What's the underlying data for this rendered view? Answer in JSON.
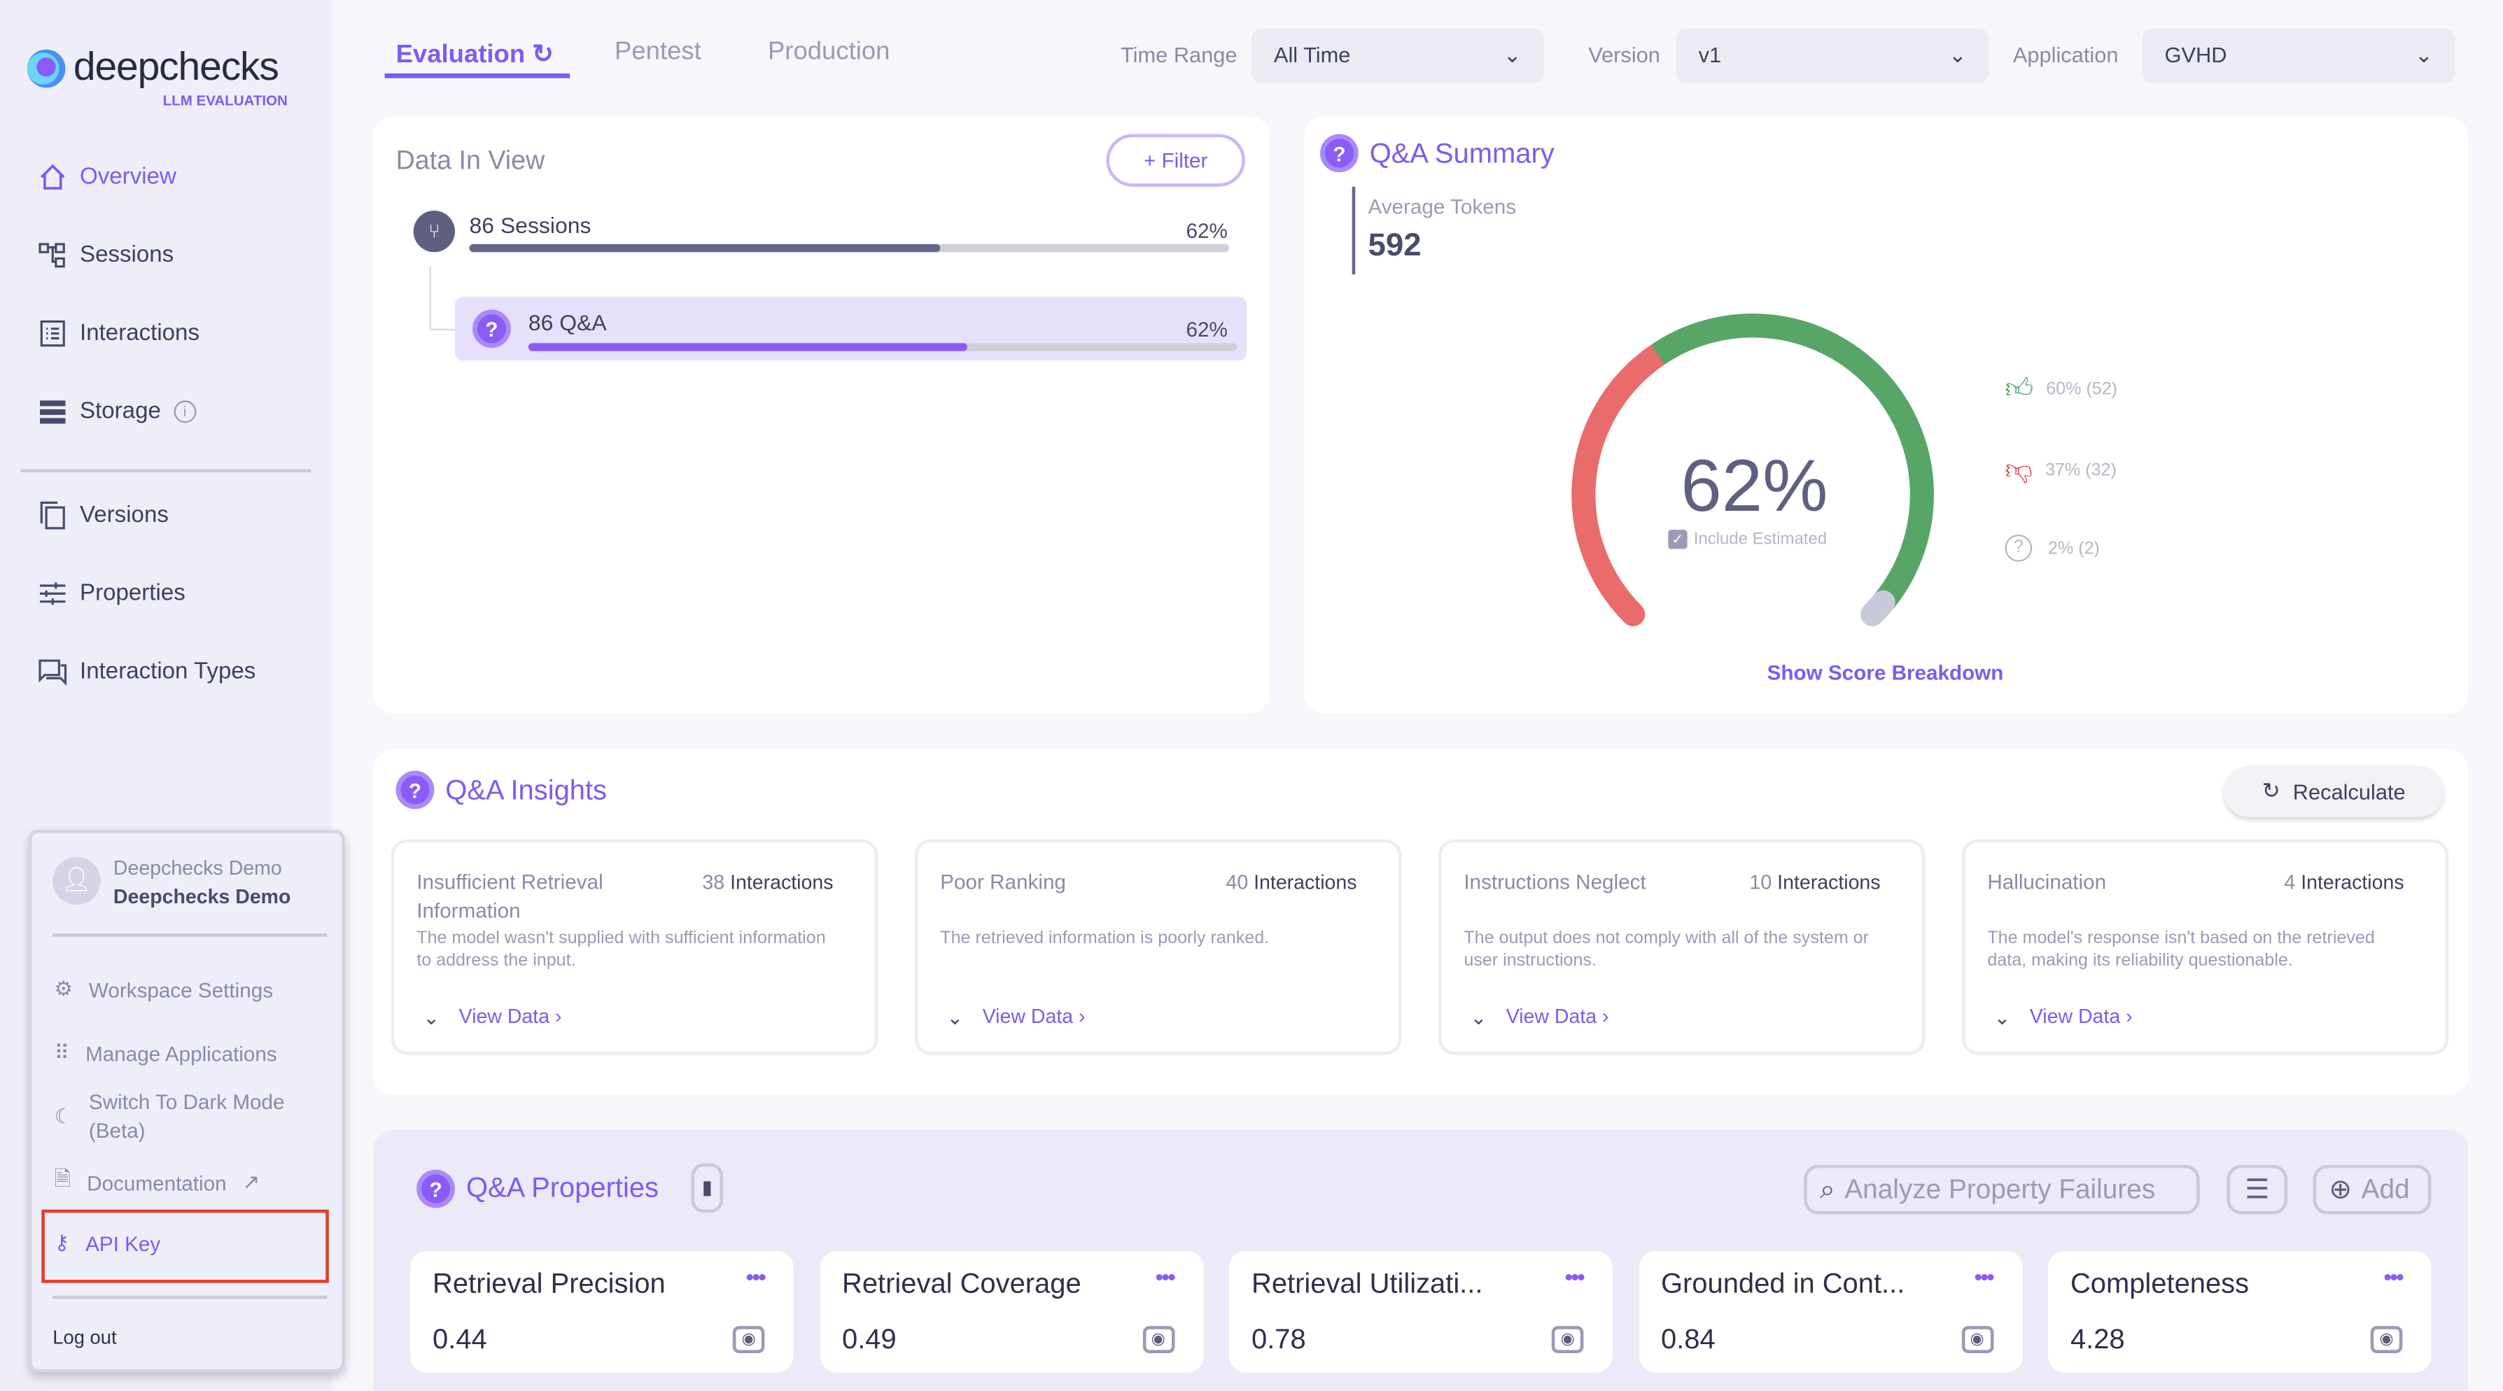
{
  "brand": {
    "name": "deepchecks",
    "subtitle": "LLM EVALUATION"
  },
  "sidebar": {
    "items": [
      {
        "label": "Overview"
      },
      {
        "label": "Sessions"
      },
      {
        "label": "Interactions"
      },
      {
        "label": "Storage"
      },
      {
        "label": "Versions"
      },
      {
        "label": "Properties"
      },
      {
        "label": "Interaction Types"
      }
    ]
  },
  "tabs": [
    {
      "label": "Evaluation"
    },
    {
      "label": "Pentest"
    },
    {
      "label": "Production"
    }
  ],
  "filters": {
    "time_range_label": "Time Range",
    "time_range": "All Time",
    "version_label": "Version",
    "version": "v1",
    "application_label": "Application",
    "application": "GVHD"
  },
  "data_in_view": {
    "title": "Data In View",
    "filter_button": "+ Filter",
    "sessions": {
      "label": "86 Sessions",
      "percent": "62%",
      "fraction": 0.62
    },
    "qa": {
      "label": "86 Q&A",
      "percent": "62%",
      "fraction": 0.62
    }
  },
  "summary": {
    "title": "Q&A Summary",
    "avg_tokens_label": "Average Tokens",
    "avg_tokens": "592",
    "score": "62%",
    "include_estimated": "Include Estimated",
    "good": "60% (52)",
    "bad": "37% (32)",
    "unknown": "2% (2)",
    "good_fraction": 0.6,
    "bad_fraction": 0.37,
    "unknown_fraction": 0.02,
    "breakdown_link": "Show Score Breakdown",
    "colors": {
      "good": "#58a667",
      "bad": "#e96b6b",
      "unknown": "#c9c9dc"
    }
  },
  "insights": {
    "title": "Q&A Insights",
    "recalculate": "Recalculate",
    "cards": [
      {
        "title": "Insufficient Retrieval Information",
        "count": "38",
        "count_label": "Interactions",
        "desc": "The model wasn't supplied with sufficient information to address the input.",
        "link": "View Data ›"
      },
      {
        "title": "Poor Ranking",
        "count": "40",
        "count_label": "Interactions",
        "desc": "The retrieved information is poorly ranked.",
        "link": "View Data ›"
      },
      {
        "title": "Instructions Neglect",
        "count": "10",
        "count_label": "Interactions",
        "desc": "The output does not comply with all of the system or user instructions.",
        "link": "View Data ›"
      },
      {
        "title": "Hallucination",
        "count": "4",
        "count_label": "Interactions",
        "desc": "The model's response isn't based on the retrieved data, making its reliability questionable.",
        "link": "View Data ›"
      }
    ]
  },
  "properties": {
    "title": "Q&A Properties",
    "analyze": "Analyze Property Failures",
    "add": "Add",
    "cards": [
      {
        "name": "Retrieval Precision",
        "value": "0.44"
      },
      {
        "name": "Retrieval Coverage",
        "value": "0.49"
      },
      {
        "name": "Retrieval Utilizati...",
        "value": "0.78"
      },
      {
        "name": "Grounded in Cont...",
        "value": "0.84"
      },
      {
        "name": "Completeness",
        "value": "4.28"
      }
    ]
  },
  "user_menu": {
    "org": "Deepchecks Demo",
    "user": "Deepchecks Demo",
    "items": [
      {
        "label": "Workspace Settings"
      },
      {
        "label": "Manage Applications"
      },
      {
        "label": "Switch To Dark Mode (Beta)"
      },
      {
        "label": "Documentation"
      },
      {
        "label": "API Key"
      }
    ],
    "logout": "Log out"
  }
}
